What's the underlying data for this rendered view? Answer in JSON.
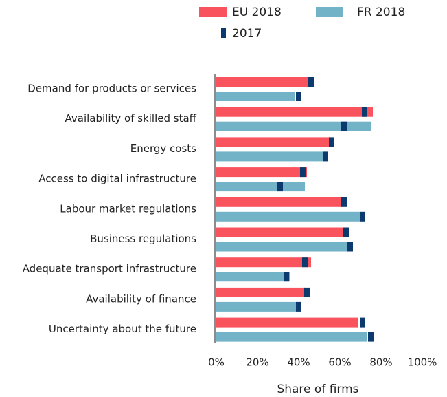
{
  "chart_data": {
    "type": "bar",
    "orientation": "horizontal",
    "categories": [
      "Demand for products or services",
      "Availability of skilled staff",
      "Energy costs",
      "Access to digital infrastructure",
      "Labour market regulations",
      "Business regulations",
      "Adequate transport infrastructure",
      "Availability of finance",
      "Uncertainty about the future"
    ],
    "series": [
      {
        "name": "EU 2018",
        "color": "#f9545e",
        "values": [
          45,
          76,
          55,
          44,
          61,
          62,
          46,
          43,
          69
        ],
        "values_2017": [
          46,
          72,
          56,
          42,
          62,
          63,
          43,
          44,
          71
        ]
      },
      {
        "name": "FR 2018",
        "color": "#72b3c8",
        "values": [
          38,
          75,
          52,
          43,
          70,
          64,
          36,
          39,
          73
        ],
        "values_2017": [
          40,
          62,
          53,
          31,
          71,
          65,
          34,
          40,
          75
        ]
      }
    ],
    "marker_name": "2017",
    "marker_color": "#0d3a6e",
    "xlabel": "Share of firms",
    "xlim": [
      0,
      100
    ],
    "xticks": [
      {
        "value": 0,
        "label": "0%"
      },
      {
        "value": 20,
        "label": "20%"
      },
      {
        "value": 40,
        "label": "40%"
      },
      {
        "value": 60,
        "label": "60%"
      },
      {
        "value": 80,
        "label": "80%"
      },
      {
        "value": 100,
        "label": "100%"
      }
    ]
  }
}
